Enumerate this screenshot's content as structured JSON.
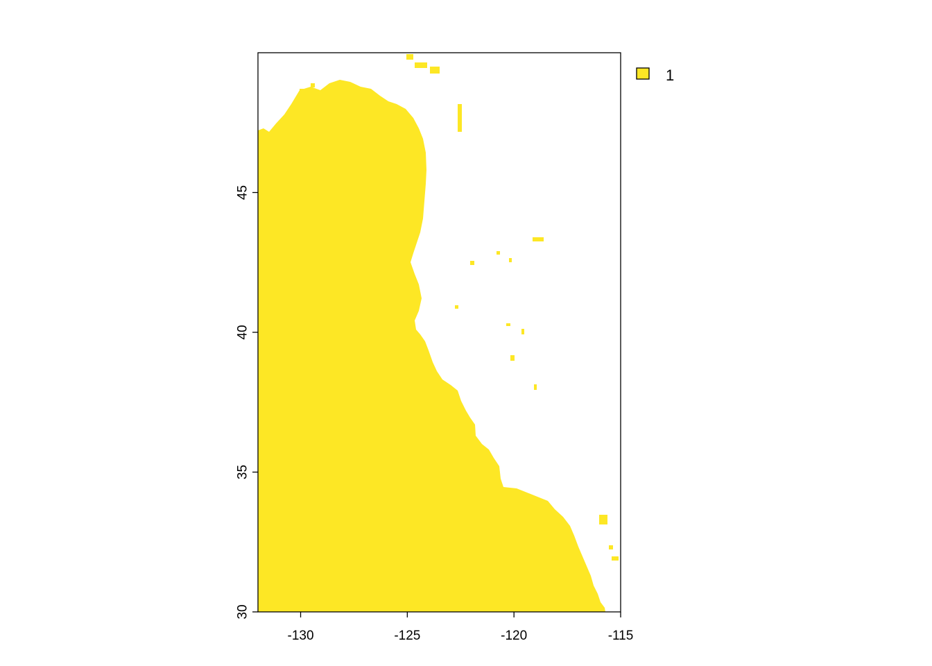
{
  "map": {
    "type": "raster",
    "x_range": [
      -132,
      -115
    ],
    "y_range": [
      30,
      50
    ],
    "x_ticks": [
      -130,
      -125,
      -120,
      -115
    ],
    "y_ticks": [
      30,
      35,
      40,
      45
    ],
    "x_tick_labels": [
      "-130",
      "-125",
      "-120",
      "-115"
    ],
    "y_tick_labels": [
      "30",
      "35",
      "40",
      "45"
    ],
    "fill_color": "#FDE725",
    "background_color": "#FFFFFF",
    "legend": {
      "position": "top-right",
      "items": [
        {
          "label": "1",
          "color": "#FDE725"
        }
      ]
    }
  }
}
